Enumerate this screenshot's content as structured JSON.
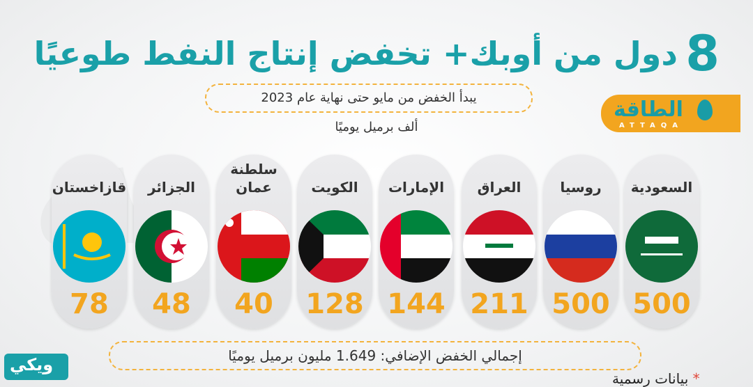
{
  "title": {
    "number": "8",
    "text": "دول من أوبك+ تخفض إنتاج النفط طوعيًا"
  },
  "subtitle": "يبدأ الخفض من مايو حتى نهاية عام 2023",
  "logo": {
    "text": "الطاقة",
    "sub": "ATTAQA"
  },
  "source": {
    "star": "*",
    "text": "بيانات رسمية"
  },
  "wiki": {
    "text": "ويكي"
  },
  "total": "إجمالي الخفض الإضافي: 1.649 مليون برميل يوميًا",
  "chart_data": {
    "type": "bar",
    "title": "8 دول من أوبك+ تخفض إنتاج النفط طوعيًا",
    "subtitle": "يبدأ الخفض من مايو حتى نهاية عام 2023",
    "unit": "ألف برميل يوميًا",
    "categories": [
      "السعودية",
      "روسيا",
      "العراق",
      "الإمارات",
      "الكويت",
      "سلطنة عمان",
      "الجزائر",
      "قازاخستان"
    ],
    "values": [
      500,
      500,
      211,
      144,
      128,
      40,
      48,
      78
    ]
  }
}
